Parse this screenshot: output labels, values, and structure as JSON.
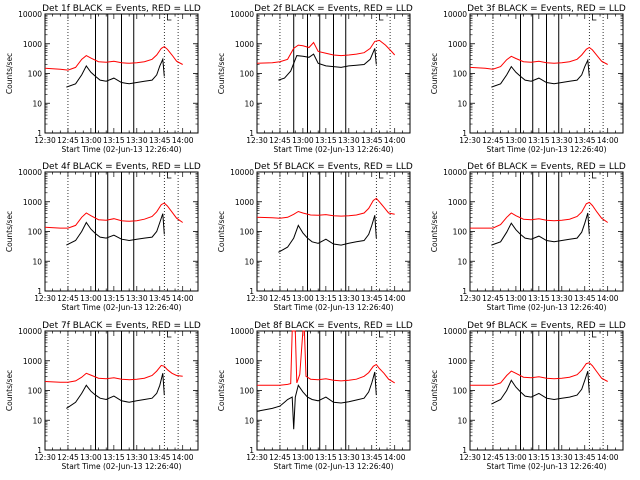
{
  "figure": {
    "background": "#ffffff",
    "foreground": "#000000",
    "events_color": "#000000",
    "lld_color": "#ff0000"
  },
  "chart_data": {
    "type": "line",
    "grid": false,
    "log_y": true,
    "ylim": [
      1,
      10000
    ],
    "y_ticks": [
      1,
      10,
      100,
      1000,
      10000
    ],
    "x_ticks": [
      "12:30",
      "12:45",
      "13:00",
      "13:15",
      "13:30",
      "13:45",
      "14:00"
    ],
    "x_ticks_minutes": [
      0,
      15,
      30,
      45,
      60,
      75,
      90
    ],
    "xlabel": "Start Time (02-Jun-13 12:26:40)",
    "ylabel": "Counts/sec",
    "panels": [
      {
        "title": "Det 1f BLACK = Events, RED = LLD",
        "dotted_lines": [
          15,
          78,
          87
        ],
        "solid_lines": [
          33,
          41,
          50,
          58
        ],
        "series": [
          {
            "name": "Events",
            "color": "#000000",
            "x": [
              14,
              20,
              24,
              27,
              30,
              33,
              36,
              40,
              45,
              50,
              55,
              60,
              65,
              70,
              73,
              75,
              77,
              78
            ],
            "y": [
              35,
              45,
              90,
              180,
              110,
              80,
              60,
              55,
              70,
              50,
              45,
              50,
              55,
              60,
              90,
              180,
              300,
              80
            ]
          },
          {
            "name": "LLD",
            "color": "#ff0000",
            "x": [
              0,
              10,
              15,
              20,
              24,
              27,
              30,
              35,
              40,
              45,
              50,
              55,
              60,
              65,
              70,
              73,
              76,
              78,
              80,
              83,
              86,
              90
            ],
            "y": [
              150,
              140,
              130,
              160,
              300,
              400,
              330,
              250,
              240,
              260,
              230,
              220,
              230,
              250,
              300,
              420,
              700,
              800,
              650,
              420,
              260,
              200
            ]
          }
        ]
      },
      {
        "title": "Det 2f BLACK = Events, RED = LLD",
        "dotted_lines": [
          15,
          78,
          87
        ],
        "solid_lines": [
          24,
          33,
          41,
          50,
          58
        ],
        "series": [
          {
            "name": "Events",
            "color": "#000000",
            "x": [
              14,
              18,
              22,
              26,
              30,
              34,
              37,
              40,
              45,
              50,
              55,
              60,
              65,
              70,
              74,
              77,
              78
            ],
            "y": [
              60,
              70,
              120,
              400,
              380,
              350,
              450,
              220,
              180,
              170,
              160,
              180,
              190,
              200,
              300,
              700,
              200
            ]
          },
          {
            "name": "LLD",
            "color": "#ff0000",
            "x": [
              0,
              10,
              15,
              20,
              24,
              27,
              30,
              34,
              37,
              40,
              45,
              50,
              55,
              60,
              65,
              70,
              74,
              77,
              80,
              84,
              88,
              90
            ],
            "y": [
              220,
              230,
              250,
              300,
              700,
              900,
              850,
              750,
              1100,
              550,
              480,
              420,
              400,
              420,
              450,
              500,
              700,
              1200,
              1300,
              900,
              550,
              420
            ]
          }
        ]
      },
      {
        "title": "Det 3f BLACK = Events, RED = LLD",
        "dotted_lines": [
          15,
          78,
          87
        ],
        "solid_lines": [
          33,
          41,
          50,
          58
        ],
        "series": [
          {
            "name": "Events",
            "color": "#000000",
            "x": [
              14,
              20,
              24,
              27,
              30,
              33,
              36,
              40,
              45,
              50,
              55,
              60,
              65,
              70,
              73,
              75,
              77,
              78
            ],
            "y": [
              35,
              45,
              90,
              170,
              110,
              80,
              60,
              55,
              70,
              50,
              45,
              50,
              55,
              60,
              90,
              170,
              280,
              80
            ]
          },
          {
            "name": "LLD",
            "color": "#ff0000",
            "x": [
              0,
              10,
              15,
              20,
              24,
              27,
              30,
              35,
              40,
              45,
              50,
              55,
              60,
              65,
              70,
              73,
              76,
              78,
              80,
              83,
              86,
              90
            ],
            "y": [
              160,
              150,
              140,
              170,
              290,
              380,
              320,
              250,
              240,
              260,
              230,
              220,
              230,
              250,
              300,
              420,
              650,
              750,
              620,
              400,
              260,
              200
            ]
          }
        ]
      },
      {
        "title": "Det 4f BLACK = Events, RED = LLD",
        "dotted_lines": [
          15,
          78,
          87
        ],
        "solid_lines": [
          33,
          41,
          50,
          58
        ],
        "series": [
          {
            "name": "Events",
            "color": "#000000",
            "x": [
              14,
              20,
              24,
              27,
              30,
              33,
              36,
              40,
              45,
              50,
              55,
              60,
              65,
              70,
              73,
              75,
              77,
              78
            ],
            "y": [
              35,
              50,
              100,
              200,
              120,
              85,
              65,
              60,
              75,
              55,
              50,
              55,
              60,
              65,
              100,
              200,
              400,
              80
            ]
          },
          {
            "name": "LLD",
            "color": "#ff0000",
            "x": [
              0,
              10,
              15,
              20,
              24,
              27,
              30,
              35,
              40,
              45,
              50,
              55,
              60,
              65,
              70,
              73,
              76,
              78,
              80,
              83,
              86,
              90
            ],
            "y": [
              140,
              130,
              130,
              160,
              300,
              420,
              340,
              250,
              240,
              270,
              230,
              220,
              230,
              260,
              320,
              460,
              800,
              900,
              720,
              450,
              280,
              200
            ]
          }
        ]
      },
      {
        "title": "Det 5f BLACK = Events, RED = LLD",
        "dotted_lines": [
          15,
          78,
          87
        ],
        "solid_lines": [
          33,
          41,
          50,
          58
        ],
        "series": [
          {
            "name": "Events",
            "color": "#000000",
            "x": [
              14,
              20,
              24,
              27,
              30,
              33,
              36,
              40,
              45,
              50,
              55,
              60,
              65,
              70,
              73,
              75,
              77,
              78
            ],
            "y": [
              20,
              30,
              60,
              160,
              90,
              60,
              45,
              40,
              55,
              38,
              35,
              40,
              45,
              50,
              80,
              160,
              350,
              60
            ]
          },
          {
            "name": "LLD",
            "color": "#ff0000",
            "x": [
              0,
              10,
              15,
              20,
              24,
              27,
              30,
              35,
              40,
              45,
              50,
              55,
              60,
              65,
              70,
              73,
              76,
              78,
              80,
              83,
              86,
              90
            ],
            "y": [
              300,
              290,
              280,
              300,
              380,
              470,
              420,
              360,
              350,
              370,
              340,
              330,
              340,
              360,
              420,
              600,
              1100,
              1300,
              1000,
              650,
              420,
              380
            ]
          }
        ]
      },
      {
        "title": "Det 6f BLACK = Events, RED = LLD",
        "dotted_lines": [
          15,
          78,
          87
        ],
        "solid_lines": [
          33,
          41,
          50,
          58
        ],
        "series": [
          {
            "name": "Events",
            "color": "#000000",
            "x": [
              14,
              20,
              24,
              27,
              30,
              33,
              36,
              40,
              45,
              50,
              55,
              60,
              65,
              70,
              73,
              75,
              77,
              78
            ],
            "y": [
              35,
              45,
              95,
              190,
              115,
              80,
              60,
              55,
              70,
              50,
              45,
              50,
              55,
              60,
              95,
              190,
              420,
              80
            ]
          },
          {
            "name": "LLD",
            "color": "#ff0000",
            "x": [
              0,
              10,
              15,
              20,
              24,
              27,
              30,
              35,
              40,
              45,
              50,
              55,
              60,
              65,
              70,
              73,
              76,
              78,
              80,
              83,
              86,
              90
            ],
            "y": [
              130,
              130,
              130,
              170,
              300,
              420,
              340,
              260,
              250,
              270,
              240,
              230,
              240,
              260,
              320,
              450,
              850,
              950,
              750,
              450,
              280,
              200
            ]
          }
        ]
      },
      {
        "title": "Det 7f BLACK = Events, RED = LLD",
        "dotted_lines": [
          15,
          78,
          87
        ],
        "solid_lines": [
          33,
          41,
          50,
          58
        ],
        "series": [
          {
            "name": "Events",
            "color": "#000000",
            "x": [
              14,
              20,
              24,
              27,
              30,
              33,
              36,
              40,
              45,
              50,
              55,
              60,
              65,
              70,
              73,
              75,
              77,
              78
            ],
            "y": [
              25,
              40,
              80,
              150,
              95,
              70,
              55,
              50,
              65,
              45,
              40,
              45,
              50,
              55,
              80,
              150,
              380,
              70
            ]
          },
          {
            "name": "LLD",
            "color": "#ff0000",
            "x": [
              0,
              10,
              15,
              20,
              24,
              27,
              30,
              35,
              40,
              45,
              50,
              55,
              60,
              65,
              70,
              73,
              76,
              78,
              80,
              83,
              86,
              90
            ],
            "y": [
              200,
              190,
              190,
              210,
              280,
              380,
              330,
              260,
              250,
              270,
              240,
              230,
              240,
              260,
              320,
              450,
              700,
              650,
              500,
              380,
              320,
              300
            ]
          }
        ]
      },
      {
        "title": "Det 8f BLACK = Events, RED = LLD",
        "dotted_lines": [
          15,
          78,
          87
        ],
        "solid_lines": [
          33,
          41,
          50,
          58
        ],
        "series": [
          {
            "name": "Events",
            "color": "#000000",
            "x": [
              0,
              10,
              15,
              18,
              20,
              23,
              24,
              25,
              27,
              30,
              33,
              36,
              40,
              45,
              50,
              55,
              60,
              65,
              70,
              73,
              75,
              77,
              78
            ],
            "y": [
              20,
              25,
              30,
              40,
              50,
              60,
              5,
              60,
              150,
              90,
              60,
              50,
              45,
              60,
              40,
              38,
              42,
              48,
              55,
              90,
              180,
              420,
              70
            ]
          },
          {
            "name": "LLD",
            "color": "#ff0000",
            "x": [
              0,
              10,
              15,
              20,
              22,
              23,
              24,
              25,
              26,
              27,
              28,
              30,
              31,
              32,
              33,
              35,
              40,
              45,
              50,
              55,
              60,
              65,
              70,
              73,
              76,
              78,
              80,
              83,
              86,
              90
            ],
            "y": [
              150,
              150,
              150,
              160,
              170,
              10000,
              10000,
              10000,
              180,
              250,
              350,
              10000,
              10000,
              300,
              280,
              240,
              230,
              250,
              220,
              210,
              220,
              240,
              300,
              400,
              650,
              750,
              550,
              380,
              240,
              180
            ]
          }
        ]
      },
      {
        "title": "Det 9f BLACK = Events, RED = LLD",
        "dotted_lines": [
          15,
          78,
          87
        ],
        "solid_lines": [
          33,
          41,
          50,
          58
        ],
        "series": [
          {
            "name": "Events",
            "color": "#000000",
            "x": [
              14,
              20,
              24,
              27,
              30,
              33,
              36,
              40,
              45,
              50,
              55,
              60,
              65,
              70,
              73,
              75,
              77,
              78
            ],
            "y": [
              35,
              50,
              100,
              220,
              130,
              90,
              65,
              60,
              80,
              55,
              50,
              55,
              60,
              70,
              110,
              220,
              450,
              80
            ]
          },
          {
            "name": "LLD",
            "color": "#ff0000",
            "x": [
              0,
              10,
              15,
              20,
              24,
              27,
              30,
              35,
              40,
              45,
              50,
              55,
              60,
              65,
              70,
              73,
              76,
              78,
              80,
              83,
              86,
              90
            ],
            "y": [
              150,
              150,
              150,
              180,
              320,
              450,
              380,
              280,
              270,
              290,
              260,
              250,
              260,
              280,
              340,
              480,
              800,
              850,
              680,
              420,
              260,
              200
            ]
          }
        ]
      }
    ]
  }
}
